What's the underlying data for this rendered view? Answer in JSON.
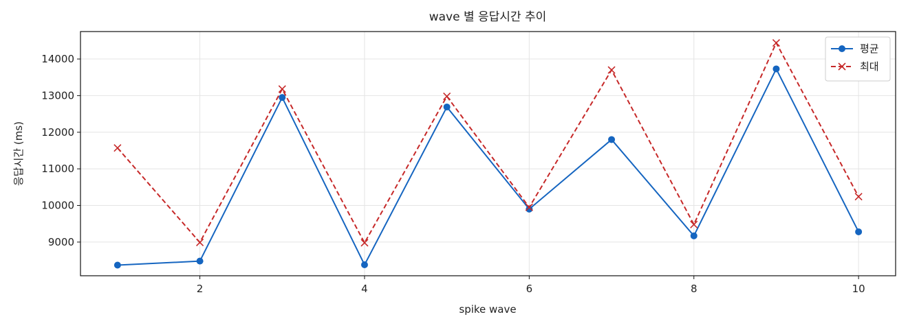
{
  "chart_data": {
    "type": "line",
    "title": "wave 별 응답시간 추이",
    "x_label": "spike wave",
    "y_label": "응답시간 (ms)",
    "x": [
      1,
      2,
      3,
      4,
      5,
      6,
      7,
      8,
      9,
      10
    ],
    "series": [
      {
        "name": "평균",
        "color": "#1565c0",
        "marker": "circle",
        "linestyle": "solid",
        "values": [
          8370,
          8480,
          12950,
          8380,
          12690,
          9900,
          11800,
          9170,
          13730,
          9280
        ]
      },
      {
        "name": "최대",
        "color": "#c62828",
        "marker": "x",
        "linestyle": "dashed",
        "values": [
          11570,
          8990,
          13180,
          8980,
          12980,
          9950,
          13700,
          9480,
          14440,
          10240
        ]
      }
    ],
    "xlim": [
      0.55,
      10.45
    ],
    "xticks": [
      2,
      4,
      6,
      8,
      10
    ],
    "ylim": [
      8080,
      14750
    ],
    "yticks": [
      9000,
      10000,
      11000,
      12000,
      13000,
      14000
    ],
    "grid": true,
    "legend": "upper right"
  }
}
